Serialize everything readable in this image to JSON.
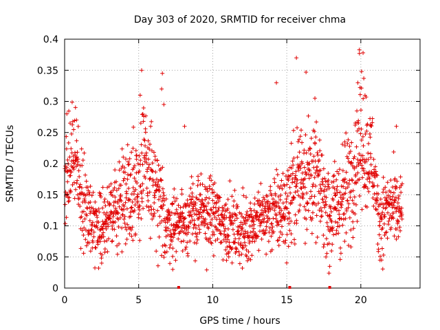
{
  "chart_data": {
    "type": "scatter",
    "title": "Day 303 of 2020, SRMTID for receiver chma",
    "xlabel": "GPS time / hours",
    "ylabel": "SRMTID / TECUs",
    "xlim": [
      0,
      24
    ],
    "ylim": [
      0,
      0.4
    ],
    "xticks": [
      0,
      5,
      10,
      15,
      20
    ],
    "yticks": [
      0,
      0.05,
      0.1,
      0.15,
      0.2,
      0.25,
      0.3,
      0.35,
      0.4
    ],
    "ytick_labels": [
      "0",
      "0.05",
      "0.1",
      "0.15",
      "0.2",
      "0.25",
      "0.3",
      "0.35",
      "0.4"
    ],
    "xtick_labels": [
      "0",
      "5",
      "10",
      "15",
      "20"
    ],
    "grid": true,
    "marker": "+",
    "color": "#e00000",
    "baseline_markers_x": [
      7.7,
      15.2,
      17.9
    ],
    "envelope": [
      {
        "x": 0.0,
        "c": 0.16,
        "s": 0.04
      },
      {
        "x": 0.5,
        "c": 0.22,
        "s": 0.035
      },
      {
        "x": 1.0,
        "c": 0.16,
        "s": 0.04
      },
      {
        "x": 2.0,
        "c": 0.1,
        "s": 0.025
      },
      {
        "x": 3.0,
        "c": 0.11,
        "s": 0.025
      },
      {
        "x": 4.0,
        "c": 0.15,
        "s": 0.035
      },
      {
        "x": 5.0,
        "c": 0.17,
        "s": 0.05
      },
      {
        "x": 5.5,
        "c": 0.2,
        "s": 0.05
      },
      {
        "x": 6.2,
        "c": 0.14,
        "s": 0.045
      },
      {
        "x": 7.0,
        "c": 0.1,
        "s": 0.025
      },
      {
        "x": 8.0,
        "c": 0.11,
        "s": 0.025
      },
      {
        "x": 9.0,
        "c": 0.12,
        "s": 0.03
      },
      {
        "x": 10.0,
        "c": 0.12,
        "s": 0.03
      },
      {
        "x": 11.0,
        "c": 0.1,
        "s": 0.025
      },
      {
        "x": 12.0,
        "c": 0.09,
        "s": 0.025
      },
      {
        "x": 13.0,
        "c": 0.11,
        "s": 0.025
      },
      {
        "x": 14.0,
        "c": 0.12,
        "s": 0.03
      },
      {
        "x": 15.0,
        "c": 0.13,
        "s": 0.035
      },
      {
        "x": 16.0,
        "c": 0.19,
        "s": 0.05
      },
      {
        "x": 17.0,
        "c": 0.17,
        "s": 0.04
      },
      {
        "x": 18.0,
        "c": 0.12,
        "s": 0.035
      },
      {
        "x": 19.0,
        "c": 0.15,
        "s": 0.045
      },
      {
        "x": 20.0,
        "c": 0.24,
        "s": 0.05
      },
      {
        "x": 20.8,
        "c": 0.2,
        "s": 0.04
      },
      {
        "x": 21.2,
        "c": 0.11,
        "s": 0.03
      },
      {
        "x": 22.0,
        "c": 0.13,
        "s": 0.03
      },
      {
        "x": 22.7,
        "c": 0.12,
        "s": 0.03
      }
    ],
    "outliers": [
      {
        "x": 0.15,
        "y": 0.28
      },
      {
        "x": 0.8,
        "y": 0.27
      },
      {
        "x": 5.2,
        "y": 0.35
      },
      {
        "x": 5.1,
        "y": 0.31
      },
      {
        "x": 6.6,
        "y": 0.345
      },
      {
        "x": 6.55,
        "y": 0.32
      },
      {
        "x": 6.7,
        "y": 0.295
      },
      {
        "x": 8.1,
        "y": 0.26
      },
      {
        "x": 14.3,
        "y": 0.33
      },
      {
        "x": 15.65,
        "y": 0.37
      },
      {
        "x": 16.3,
        "y": 0.347
      },
      {
        "x": 16.9,
        "y": 0.305
      },
      {
        "x": 19.9,
        "y": 0.383
      },
      {
        "x": 20.15,
        "y": 0.378
      },
      {
        "x": 20.05,
        "y": 0.348
      },
      {
        "x": 20.2,
        "y": 0.337
      },
      {
        "x": 19.8,
        "y": 0.33
      },
      {
        "x": 22.4,
        "y": 0.26
      },
      {
        "x": 17.9,
        "y": 0.035
      },
      {
        "x": 17.85,
        "y": 0.024
      },
      {
        "x": 12.0,
        "y": 0.032
      },
      {
        "x": 7.3,
        "y": 0.03
      },
      {
        "x": 2.5,
        "y": 0.04
      },
      {
        "x": 21.4,
        "y": 0.045
      }
    ],
    "end_hour": 22.8,
    "sample_step_hours": 0.0125
  }
}
